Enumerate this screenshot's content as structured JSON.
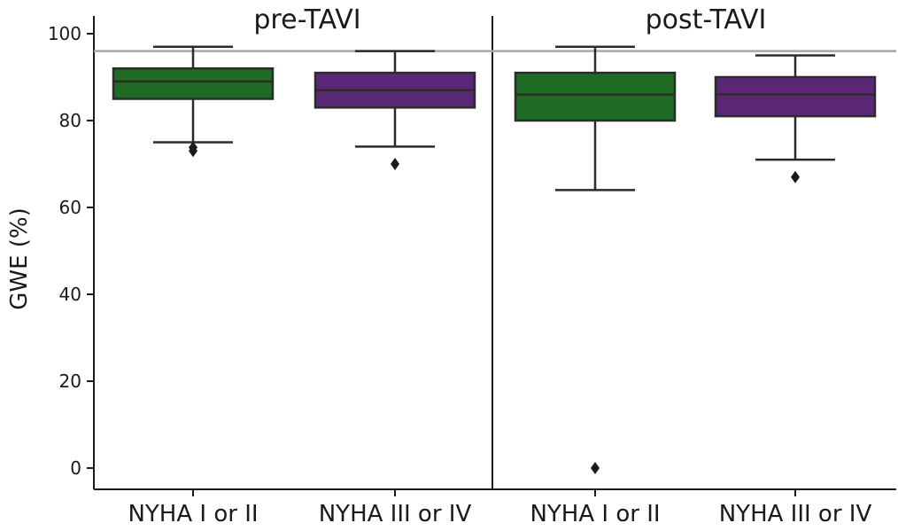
{
  "chart_data": {
    "type": "box",
    "ylabel": "GWE (%)",
    "ylim": [
      -5,
      102
    ],
    "yticks": [
      0,
      20,
      40,
      60,
      80,
      100
    ],
    "reference_line": 96,
    "grid": false,
    "colors": {
      "NYHA I or II": "#1e6b24",
      "NYHA III or IV": "#5a2676",
      "box_edge": "#2b2b2b",
      "reference_line": "#a8a8a8"
    },
    "panels": [
      {
        "title": "pre-TAVI",
        "categories": [
          "NYHA I or II",
          "NYHA III or IV"
        ],
        "boxes": [
          {
            "category": "NYHA I or II",
            "q1": 85,
            "median": 89,
            "q3": 92,
            "whisker_low": 75,
            "whisker_high": 97,
            "outliers": [
              73,
              73.8
            ]
          },
          {
            "category": "NYHA III or IV",
            "q1": 83,
            "median": 87,
            "q3": 91,
            "whisker_low": 74,
            "whisker_high": 96,
            "outliers": [
              70
            ]
          }
        ]
      },
      {
        "title": "post-TAVI",
        "categories": [
          "NYHA I or II",
          "NYHA III or IV"
        ],
        "boxes": [
          {
            "category": "NYHA I or II",
            "q1": 80,
            "median": 86,
            "q3": 91,
            "whisker_low": 64,
            "whisker_high": 97,
            "outliers": [
              0
            ]
          },
          {
            "category": "NYHA III or IV",
            "q1": 81,
            "median": 86,
            "q3": 90,
            "whisker_low": 71,
            "whisker_high": 95,
            "outliers": [
              67
            ]
          }
        ]
      }
    ]
  }
}
